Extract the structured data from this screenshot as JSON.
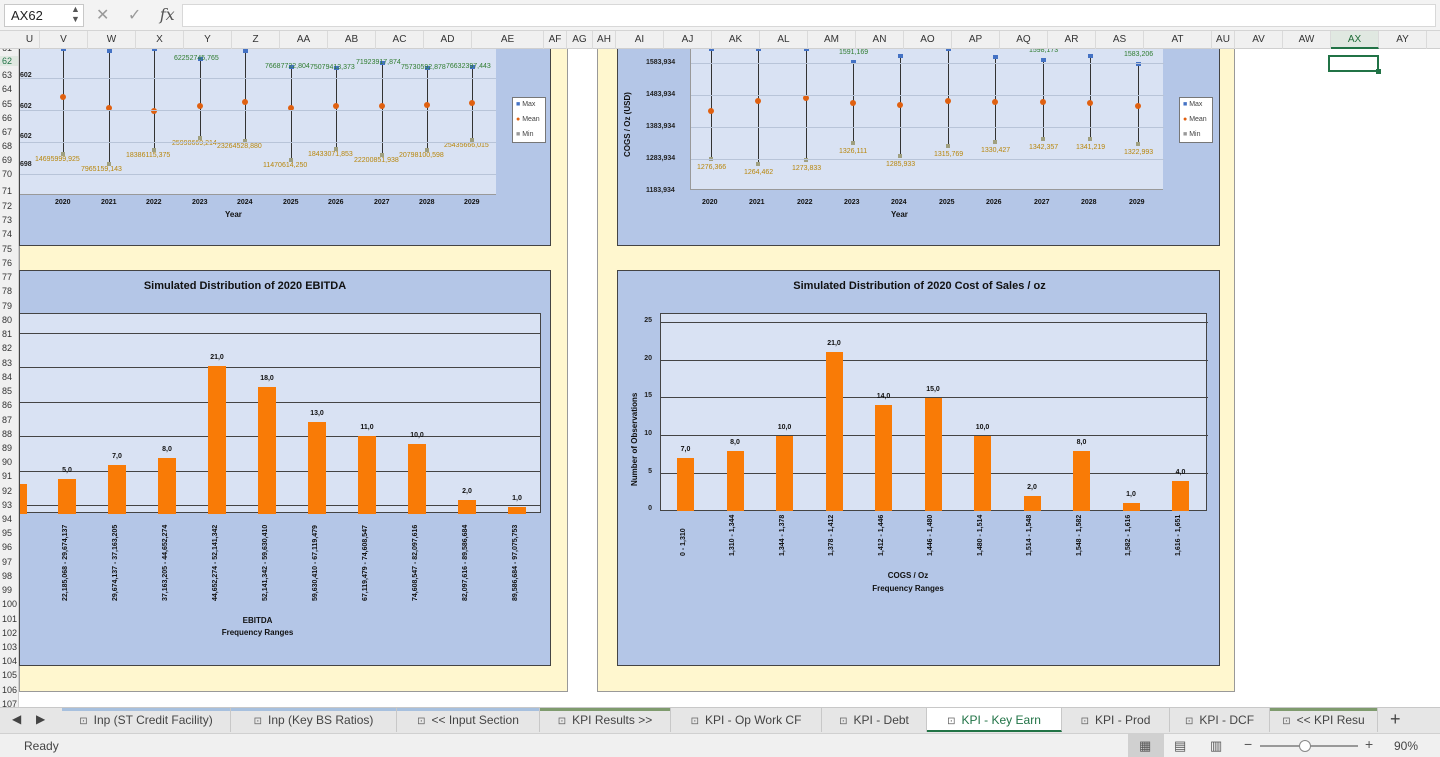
{
  "formula_bar": {
    "name_box": "AX62",
    "fx": "fx",
    "cancel": "✕",
    "confirm": "✓"
  },
  "columns": [
    "U",
    "V",
    "W",
    "X",
    "Y",
    "Z",
    "AA",
    "AB",
    "AC",
    "AD",
    "AE",
    "AF",
    "AG",
    "AH",
    "AI",
    "AJ",
    "AK",
    "AL",
    "AM",
    "AN",
    "AO",
    "AP",
    "AQ",
    "AR",
    "AS",
    "AT",
    "AU",
    "AV",
    "AW",
    "AX",
    "AY"
  ],
  "active_column": "AX",
  "rows": [
    "61",
    "62",
    "63",
    "64",
    "65",
    "66",
    "67",
    "68",
    "69",
    "70",
    "71",
    "72",
    "73",
    "74",
    "75",
    "76",
    "77",
    "78",
    "79",
    "80",
    "81",
    "82",
    "83",
    "84",
    "85",
    "86",
    "87",
    "88",
    "89",
    "90",
    "91",
    "92",
    "93",
    "94",
    "95",
    "96",
    "97",
    "98",
    "99",
    "100",
    "101",
    "102",
    "103",
    "104",
    "105",
    "106",
    "107"
  ],
  "active_row": "62",
  "chart_top_left": {
    "years": [
      "2020",
      "2021",
      "2022",
      "2023",
      "2024",
      "2025",
      "2026",
      "2027",
      "2028",
      "2029"
    ],
    "xlabel": "Year",
    "partial_y_ticks": [
      "602",
      "602",
      "602",
      "698"
    ],
    "max_labels": [
      "",
      "",
      "",
      "62252745,765",
      "",
      "76687722,804",
      "75079413,373",
      "71923917,874",
      "75730592,878",
      "76632397,443"
    ],
    "min_labels": [
      "14695999,925",
      "7965159,143",
      "18386115,375",
      "25998669,214",
      "23264528,880",
      "11470614,250",
      "18433071,853",
      "22200851,938",
      "20798100,598",
      "25435666,015"
    ],
    "legend": {
      "max": "Max",
      "mean": "Mean",
      "min": "Min"
    }
  },
  "chart_top_right": {
    "ylabel": "COGS / Oz (USD)",
    "y_ticks": [
      "1583,934",
      "1483,934",
      "1383,934",
      "1283,934",
      "1183,934"
    ],
    "years": [
      "2020",
      "2021",
      "2022",
      "2023",
      "2024",
      "2025",
      "2026",
      "2027",
      "2028",
      "2029"
    ],
    "xlabel": "Year",
    "max_labels": [
      "",
      "",
      "",
      "1591,169",
      "",
      "",
      "",
      "1598,173",
      "",
      "1583,206"
    ],
    "min_labels": [
      "1276,366",
      "1264,462",
      "1273,833",
      "1326,111",
      "1285,933",
      "1315,769",
      "1330,427",
      "1342,357",
      "1341,219",
      "1322,993"
    ],
    "legend": {
      "max": "Max",
      "mean": "Mean",
      "min": "Min"
    }
  },
  "chart_data": [
    {
      "type": "bar",
      "title": "Simulated Distribution of 2020 EBITDA",
      "xlabel": "EBITDA",
      "xlabel2": "Frequency Ranges",
      "categories": [
        "22,185,068 - 29,674,137",
        "29,674,137 - 37,163,205",
        "37,163,205 - 44,652,274",
        "44,652,274 - 52,141,342",
        "52,141,342 - 59,630,410",
        "59,630,410 - 67,119,479",
        "67,119,479 - 74,608,547",
        "74,608,547 - 82,097,616",
        "82,097,616 - 89,586,684",
        "89,586,684 - 97,075,753"
      ],
      "values": [
        5,
        7,
        8,
        21,
        18,
        13,
        11,
        10,
        2,
        1
      ],
      "labels": [
        "5,0",
        "7,0",
        "8,0",
        "21,0",
        "18,0",
        "13,0",
        "11,0",
        "10,0",
        "2,0",
        "1,0"
      ]
    },
    {
      "type": "bar",
      "title": "Simulated Distribution of 2020 Cost of Sales / oz",
      "xlabel": "COGS / Oz",
      "xlabel2": "Frequency Ranges",
      "ylabel": "Number of Observations",
      "ylim": [
        0,
        25
      ],
      "y_ticks": [
        "25",
        "20",
        "15",
        "10",
        "5",
        "0"
      ],
      "categories": [
        "0 - 1,310",
        "1,310 - 1,344",
        "1,344 - 1,378",
        "1,378 - 1,412",
        "1,412 - 1,446",
        "1,446 - 1,480",
        "1,480 - 1,514",
        "1,514 - 1,548",
        "1,548 - 1,582",
        "1,582 - 1,616",
        "1,616 - 1,651"
      ],
      "values": [
        7,
        8,
        10,
        21,
        14,
        15,
        10,
        2,
        8,
        1,
        4
      ],
      "labels": [
        "7,0",
        "8,0",
        "10,0",
        "21,0",
        "14,0",
        "15,0",
        "10,0",
        "2,0",
        "8,0",
        "1,0",
        "4,0"
      ]
    }
  ],
  "tabs": [
    {
      "label": "Inp (ST Credit Facility)",
      "active": false,
      "stripe": "#a7c0de"
    },
    {
      "label": "Inp (Key BS Ratios)",
      "active": false,
      "stripe": "#a7c0de"
    },
    {
      "label": "<< Input Section",
      "active": false,
      "stripe": "#a7c0de"
    },
    {
      "label": "KPI Results >>",
      "active": false,
      "stripe": "#7f9b6e"
    },
    {
      "label": "KPI - Op Work CF",
      "active": false,
      "stripe": ""
    },
    {
      "label": "KPI - Debt",
      "active": false,
      "stripe": ""
    },
    {
      "label": "KPI - Key Earn",
      "active": true,
      "stripe": ""
    },
    {
      "label": "KPI - Prod",
      "active": false,
      "stripe": ""
    },
    {
      "label": "KPI - DCF",
      "active": false,
      "stripe": ""
    },
    {
      "label": "<< KPI Resu",
      "active": false,
      "stripe": "#7f9b6e"
    }
  ],
  "status": {
    "ready": "Ready",
    "zoom": "90%"
  },
  "colors": {
    "bar": "#f97b06",
    "chart_bg": "#b4c6e7",
    "plot_bg": "#d9e2f3",
    "panel_bg": "#fff7cf",
    "accent": "#217346"
  }
}
